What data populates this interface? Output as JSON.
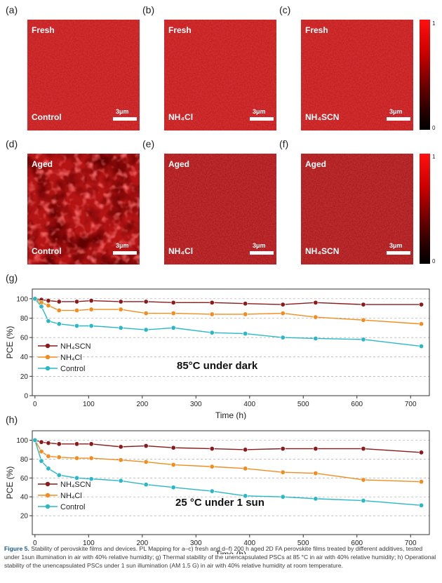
{
  "panels_top": [
    {
      "label": "(a)",
      "state": "Fresh",
      "treatment": "Control",
      "scale": "3μm"
    },
    {
      "label": "(b)",
      "state": "Fresh",
      "treatment": "NH₄Cl",
      "scale": "3μm"
    },
    {
      "label": "(c)",
      "state": "Fresh",
      "treatment": "NH₄SCN",
      "scale": "3μm"
    }
  ],
  "panels_bottom": [
    {
      "label": "(d)",
      "state": "Aged",
      "treatment": "Control",
      "scale": "3μm"
    },
    {
      "label": "(e)",
      "state": "Aged",
      "treatment": "NH₄Cl",
      "scale": "3μm"
    },
    {
      "label": "(f)",
      "state": "Aged",
      "treatment": "NH₄SCN",
      "scale": "3μm"
    }
  ],
  "colorbar": {
    "max": "1",
    "min": "0"
  },
  "chart_data": [
    {
      "panel": "(g)",
      "type": "line",
      "annotation": "85°C under dark",
      "xlabel": "Time (h)",
      "ylabel": "PCE (%)",
      "xlim": [
        -5,
        735
      ],
      "ylim": [
        0,
        110
      ],
      "xticks": [
        0,
        100,
        200,
        300,
        400,
        500,
        600,
        700
      ],
      "yticks": [
        0,
        20,
        40,
        60,
        80,
        100
      ],
      "grid": "horizontal dashed",
      "legend_position": "left",
      "series": [
        {
          "name": "NH₄SCN",
          "color": "#8b1a1a",
          "x": [
            0,
            12,
            25,
            45,
            78,
            105,
            160,
            207,
            258,
            330,
            392,
            462,
            523,
            612,
            720
          ],
          "y": [
            100,
            99,
            98,
            97,
            97,
            98,
            97,
            97,
            96,
            96,
            95,
            94,
            96,
            94,
            94
          ]
        },
        {
          "name": "NH₄Cl",
          "color": "#f28c1e",
          "x": [
            0,
            12,
            25,
            45,
            78,
            105,
            160,
            207,
            258,
            330,
            392,
            462,
            523,
            612,
            720
          ],
          "y": [
            100,
            96,
            93,
            88,
            88,
            89,
            89,
            85,
            85,
            84,
            84,
            85,
            81,
            78,
            74
          ]
        },
        {
          "name": "Control",
          "color": "#2ab7c6",
          "x": [
            0,
            12,
            25,
            45,
            78,
            105,
            160,
            207,
            258,
            330,
            392,
            462,
            523,
            612,
            720
          ],
          "y": [
            100,
            92,
            77,
            74,
            72,
            72,
            70,
            68,
            70,
            65,
            64,
            60,
            59,
            58,
            51
          ]
        }
      ]
    },
    {
      "panel": "(h)",
      "type": "line",
      "annotation": "25 °C  under 1 sun",
      "xlabel": "Time (h)",
      "ylabel": "PCE (%)",
      "xlim": [
        -5,
        735
      ],
      "ylim": [
        0,
        110
      ],
      "xticks": [
        0,
        100,
        200,
        300,
        400,
        500,
        600,
        700
      ],
      "yticks": [
        20,
        40,
        60,
        80,
        100
      ],
      "grid": "horizontal dashed",
      "legend_position": "left",
      "series": [
        {
          "name": "NH₄SCN",
          "color": "#8b1a1a",
          "x": [
            0,
            12,
            25,
            45,
            78,
            105,
            160,
            207,
            258,
            330,
            392,
            462,
            523,
            612,
            720
          ],
          "y": [
            100,
            98,
            97,
            96,
            96,
            96,
            93,
            94,
            92,
            91,
            90,
            91,
            91,
            91,
            87
          ]
        },
        {
          "name": "NH₄Cl",
          "color": "#f28c1e",
          "x": [
            0,
            12,
            25,
            45,
            78,
            105,
            160,
            207,
            258,
            330,
            392,
            462,
            523,
            612,
            720
          ],
          "y": [
            100,
            88,
            83,
            82,
            81,
            81,
            79,
            77,
            74,
            72,
            70,
            66,
            65,
            58,
            56
          ]
        },
        {
          "name": "Control",
          "color": "#2ab7c6",
          "x": [
            0,
            12,
            25,
            45,
            78,
            105,
            160,
            207,
            258,
            330,
            392,
            462,
            523,
            612,
            720
          ],
          "y": [
            100,
            78,
            70,
            63,
            60,
            59,
            57,
            53,
            50,
            46,
            41,
            40,
            38,
            36,
            31
          ]
        }
      ]
    }
  ],
  "caption": {
    "prefix": "Figure 5.",
    "text": " Stability of perovskite films and devices. PL Mapping for a–c) fresh and d–f) 200 h aged 2D FA perovskite films treated by different additives, tested under 1sun illumination in air with 40% relative humidity; g) Thermal stability of the unencapsulated PSCs at 85 °C in air with 40% relative humidity; h) Operational stability of the unencapsulated PSCs under 1 sun illumination (AM 1.5 G) in air with 40% relative humidity at room temperature."
  }
}
